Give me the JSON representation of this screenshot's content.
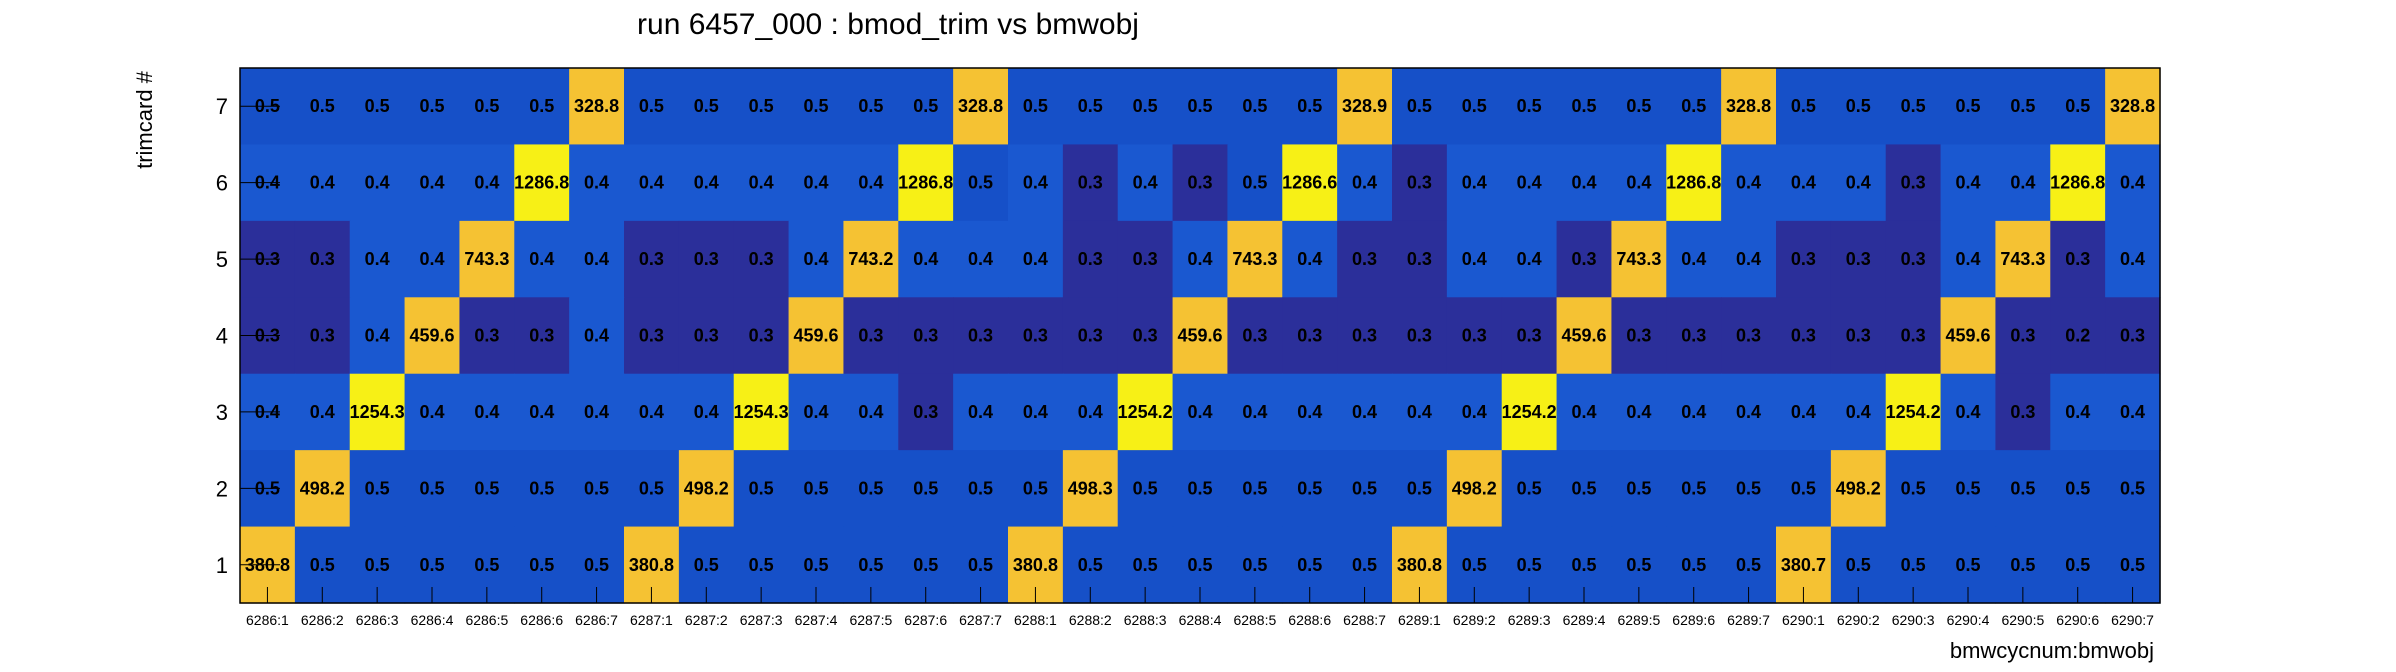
{
  "chart_data": {
    "type": "heatmap",
    "title": "run 6457_000 : bmod_trim vs bmwobj",
    "xlabel": "bmwcycnum:bmwobj",
    "ylabel": "trimcard #",
    "x_categories": [
      "6286:1",
      "6286:2",
      "6286:3",
      "6286:4",
      "6286:5",
      "6286:6",
      "6286:7",
      "6287:1",
      "6287:2",
      "6287:3",
      "6287:4",
      "6287:5",
      "6287:6",
      "6287:7",
      "6288:1",
      "6288:2",
      "6288:3",
      "6288:4",
      "6288:5",
      "6288:6",
      "6288:7",
      "6289:1",
      "6289:2",
      "6289:3",
      "6289:4",
      "6289:5",
      "6289:6",
      "6289:7",
      "6290:1",
      "6290:2",
      "6290:3",
      "6290:4",
      "6290:5",
      "6290:6",
      "6290:7"
    ],
    "y_categories": [
      "1",
      "2",
      "3",
      "4",
      "5",
      "6",
      "7"
    ],
    "rows": [
      {
        "y": "7",
        "values": [
          "0.5",
          "0.5",
          "0.5",
          "0.5",
          "0.5",
          "0.5",
          "328.8",
          "0.5",
          "0.5",
          "0.5",
          "0.5",
          "0.5",
          "0.5",
          "328.8",
          "0.5",
          "0.5",
          "0.5",
          "0.5",
          "0.5",
          "0.5",
          "328.9",
          "0.5",
          "0.5",
          "0.5",
          "0.5",
          "0.5",
          "0.5",
          "328.8",
          "0.5",
          "0.5",
          "0.5",
          "0.5",
          "0.5",
          "0.5",
          "328.8"
        ]
      },
      {
        "y": "6",
        "values": [
          "0.4",
          "0.4",
          "0.4",
          "0.4",
          "0.4",
          "1286.8",
          "0.4",
          "0.4",
          "0.4",
          "0.4",
          "0.4",
          "0.4",
          "1286.8",
          "0.5",
          "0.4",
          "0.3",
          "0.4",
          "0.3",
          "0.5",
          "1286.6",
          "0.4",
          "0.3",
          "0.4",
          "0.4",
          "0.4",
          "0.4",
          "1286.8",
          "0.4",
          "0.4",
          "0.4",
          "0.3",
          "0.4",
          "0.4",
          "1286.8",
          "0.4"
        ]
      },
      {
        "y": "5",
        "values": [
          "0.3",
          "0.3",
          "0.4",
          "0.4",
          "743.3",
          "0.4",
          "0.4",
          "0.3",
          "0.3",
          "0.3",
          "0.4",
          "743.2",
          "0.4",
          "0.4",
          "0.4",
          "0.3",
          "0.3",
          "0.4",
          "743.3",
          "0.4",
          "0.3",
          "0.3",
          "0.4",
          "0.4",
          "0.3",
          "743.3",
          "0.4",
          "0.4",
          "0.3",
          "0.3",
          "0.3",
          "0.4",
          "743.3",
          "0.3",
          "0.4"
        ]
      },
      {
        "y": "4",
        "values": [
          "0.3",
          "0.3",
          "0.4",
          "459.6",
          "0.3",
          "0.3",
          "0.4",
          "0.3",
          "0.3",
          "0.3",
          "459.6",
          "0.3",
          "0.3",
          "0.3",
          "0.3",
          "0.3",
          "0.3",
          "459.6",
          "0.3",
          "0.3",
          "0.3",
          "0.3",
          "0.3",
          "0.3",
          "459.6",
          "0.3",
          "0.3",
          "0.3",
          "0.3",
          "0.3",
          "0.3",
          "459.6",
          "0.3",
          "0.2",
          "0.3"
        ]
      },
      {
        "y": "3",
        "values": [
          "0.4",
          "0.4",
          "1254.3",
          "0.4",
          "0.4",
          "0.4",
          "0.4",
          "0.4",
          "0.4",
          "1254.3",
          "0.4",
          "0.4",
          "0.3",
          "0.4",
          "0.4",
          "0.4",
          "1254.2",
          "0.4",
          "0.4",
          "0.4",
          "0.4",
          "0.4",
          "0.4",
          "1254.2",
          "0.4",
          "0.4",
          "0.4",
          "0.4",
          "0.4",
          "0.4",
          "1254.2",
          "0.4",
          "0.3",
          "0.4",
          "0.4"
        ]
      },
      {
        "y": "2",
        "values": [
          "0.5",
          "498.2",
          "0.5",
          "0.5",
          "0.5",
          "0.5",
          "0.5",
          "0.5",
          "498.2",
          "0.5",
          "0.5",
          "0.5",
          "0.5",
          "0.5",
          "0.5",
          "498.3",
          "0.5",
          "0.5",
          "0.5",
          "0.5",
          "0.5",
          "0.5",
          "498.2",
          "0.5",
          "0.5",
          "0.5",
          "0.5",
          "0.5",
          "0.5",
          "498.2",
          "0.5",
          "0.5",
          "0.5",
          "0.5",
          "0.5"
        ]
      },
      {
        "y": "1",
        "values": [
          "380.8",
          "0.5",
          "0.5",
          "0.5",
          "0.5",
          "0.5",
          "0.5",
          "380.8",
          "0.5",
          "0.5",
          "0.5",
          "0.5",
          "0.5",
          "0.5",
          "380.8",
          "0.5",
          "0.5",
          "0.5",
          "0.5",
          "0.5",
          "0.5",
          "380.8",
          "0.5",
          "0.5",
          "0.5",
          "0.5",
          "0.5",
          "0.5",
          "380.7",
          "0.5",
          "0.5",
          "0.5",
          "0.5",
          "0.5",
          "0.5"
        ]
      }
    ],
    "colors": {
      "low": "#2b2f9a",
      "mid": "#1650c8",
      "midHigh": "#1a58d0",
      "high_warm": "#f5c233",
      "high_peak": "#f7f016"
    },
    "grid": false,
    "legend": "none"
  }
}
